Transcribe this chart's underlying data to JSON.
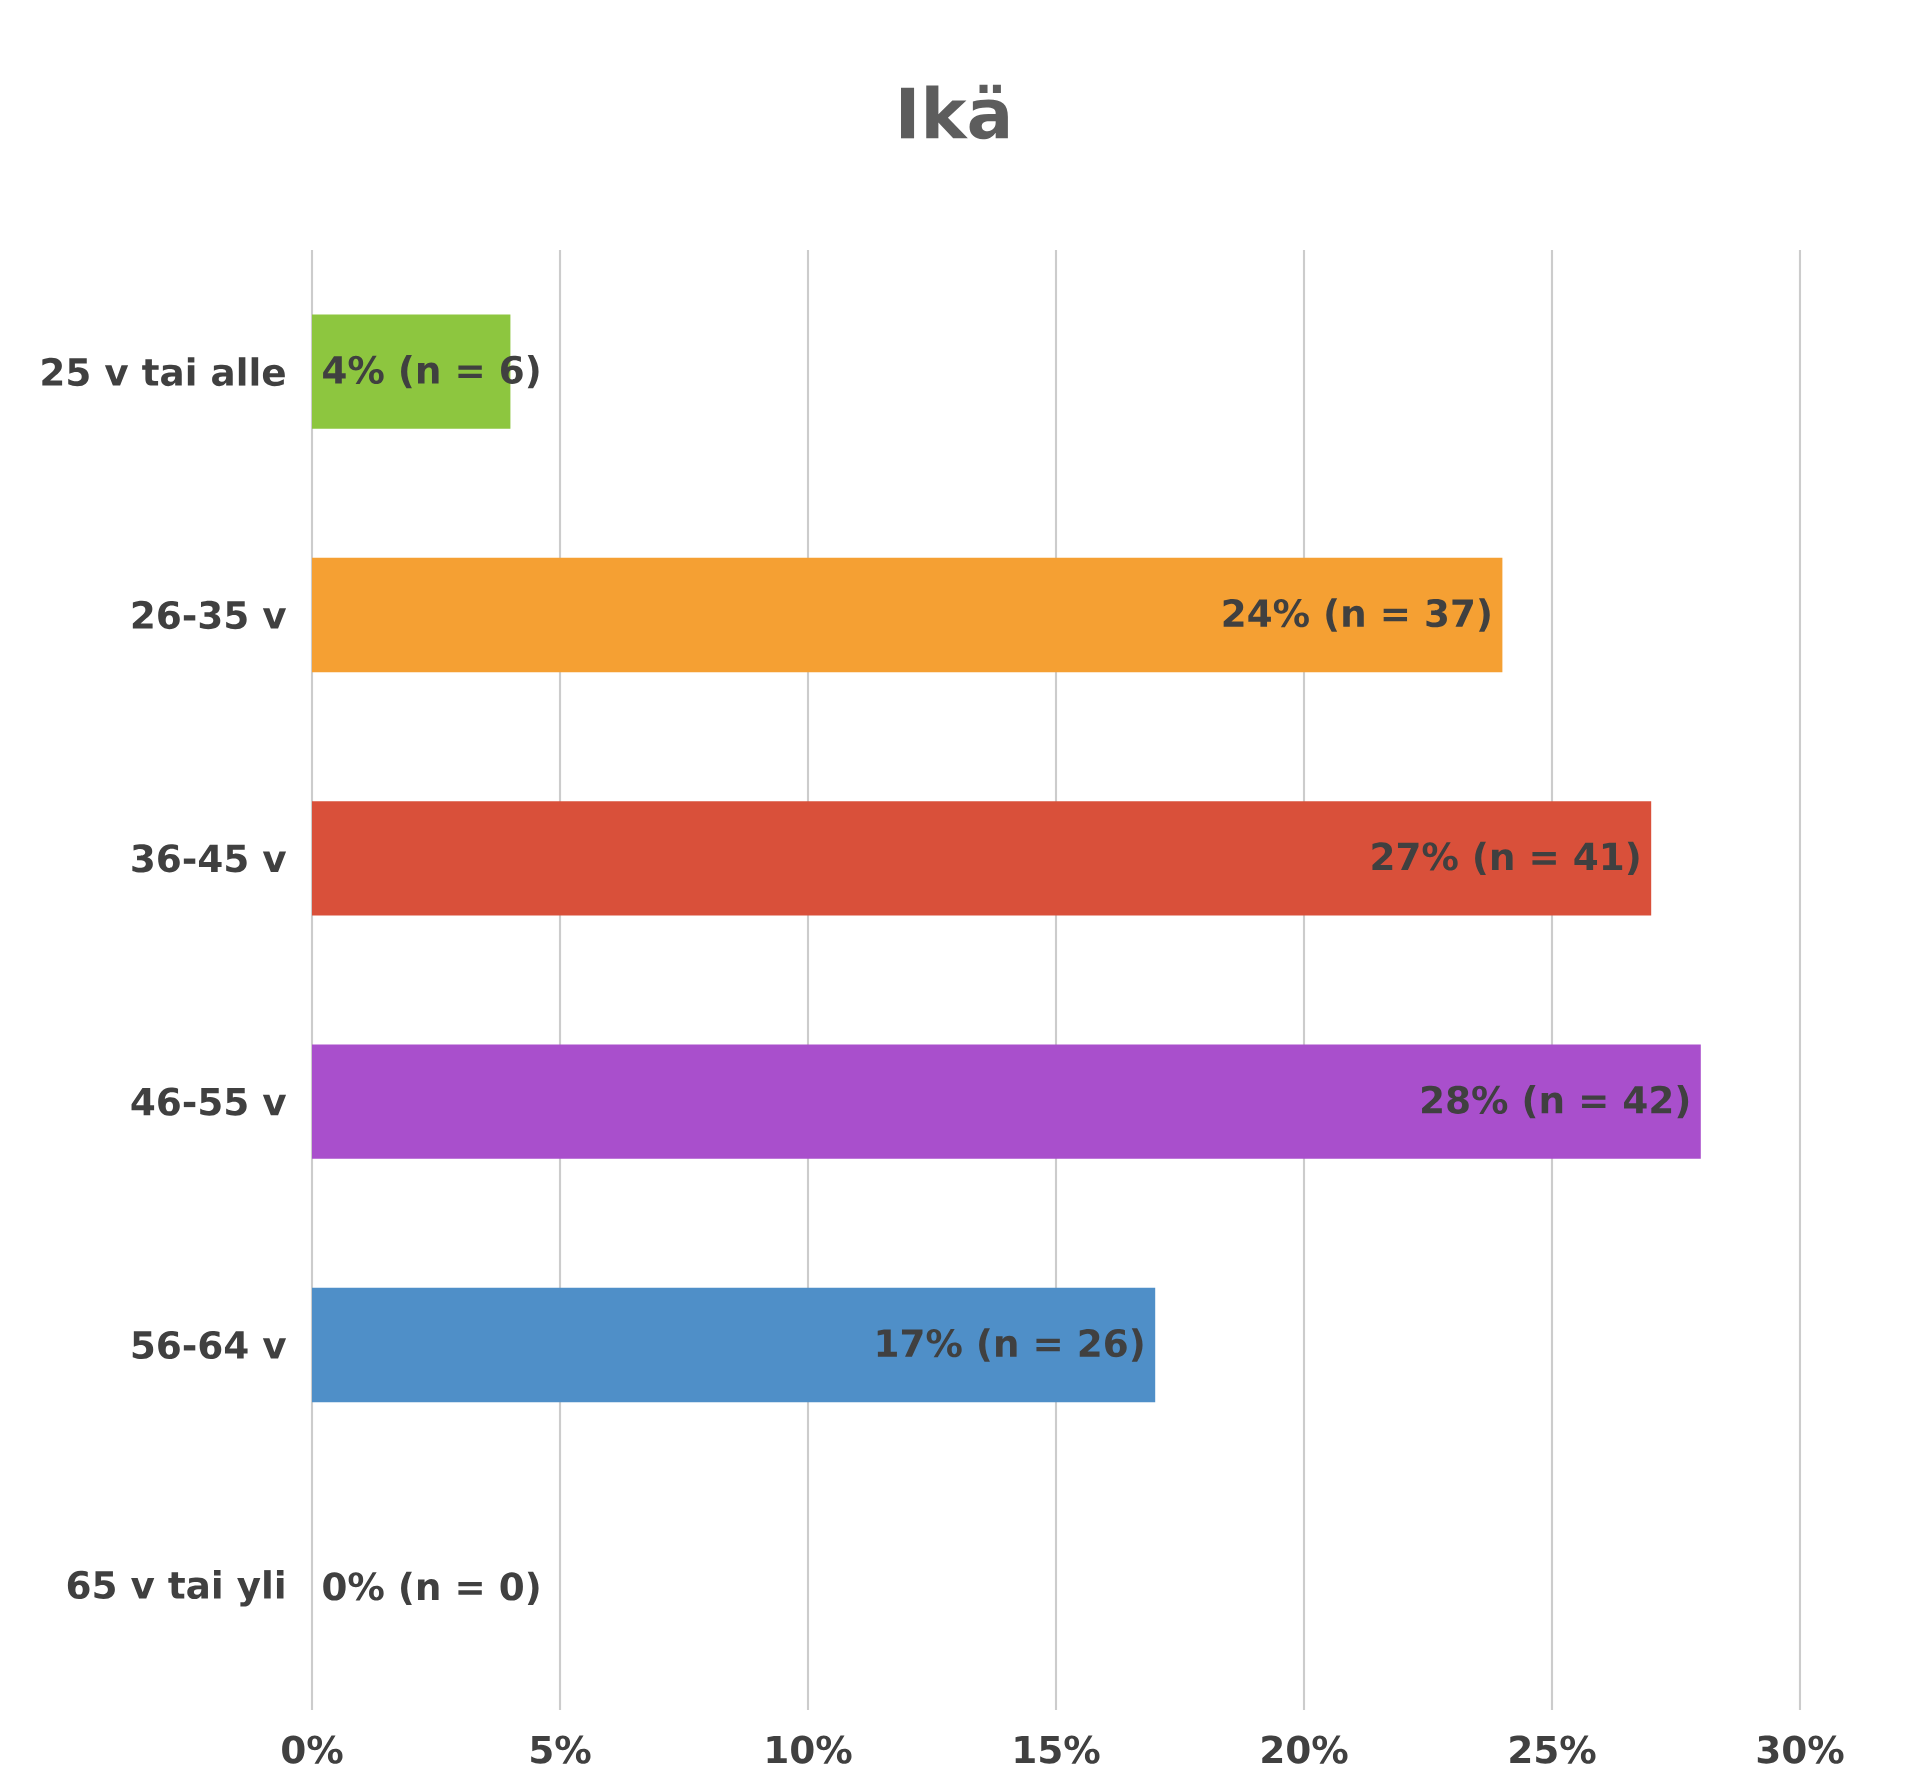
{
  "chart_data": {
    "type": "bar",
    "orientation": "horizontal",
    "title": "Ikä",
    "categories": [
      "25 v tai alle",
      "26-35 v",
      "36-45 v",
      "46-55 v",
      "56-64 v",
      "65 v tai yli"
    ],
    "values": [
      4,
      24,
      27,
      28,
      17,
      0
    ],
    "value_labels": [
      "4% (n = 6)",
      "24% (n = 37)",
      "27% (n = 41)",
      "28% (n = 42)",
      "17% (n = 26)",
      "0% (n = 0)"
    ],
    "colors": [
      "#8dc63f",
      "#f5a033",
      "#d9503a",
      "#a94fcc",
      "#4f8fc8",
      "#4f8fc8"
    ],
    "xlim": [
      0,
      30
    ],
    "xticks": [
      {
        "value": 0,
        "label": "0%"
      },
      {
        "value": 5,
        "label": "5%"
      },
      {
        "value": 10,
        "label": "10%"
      },
      {
        "value": 15,
        "label": "15%"
      },
      {
        "value": 20,
        "label": "20%"
      },
      {
        "value": 25,
        "label": "25%"
      },
      {
        "value": 30,
        "label": "30%"
      }
    ],
    "grid": "x"
  }
}
